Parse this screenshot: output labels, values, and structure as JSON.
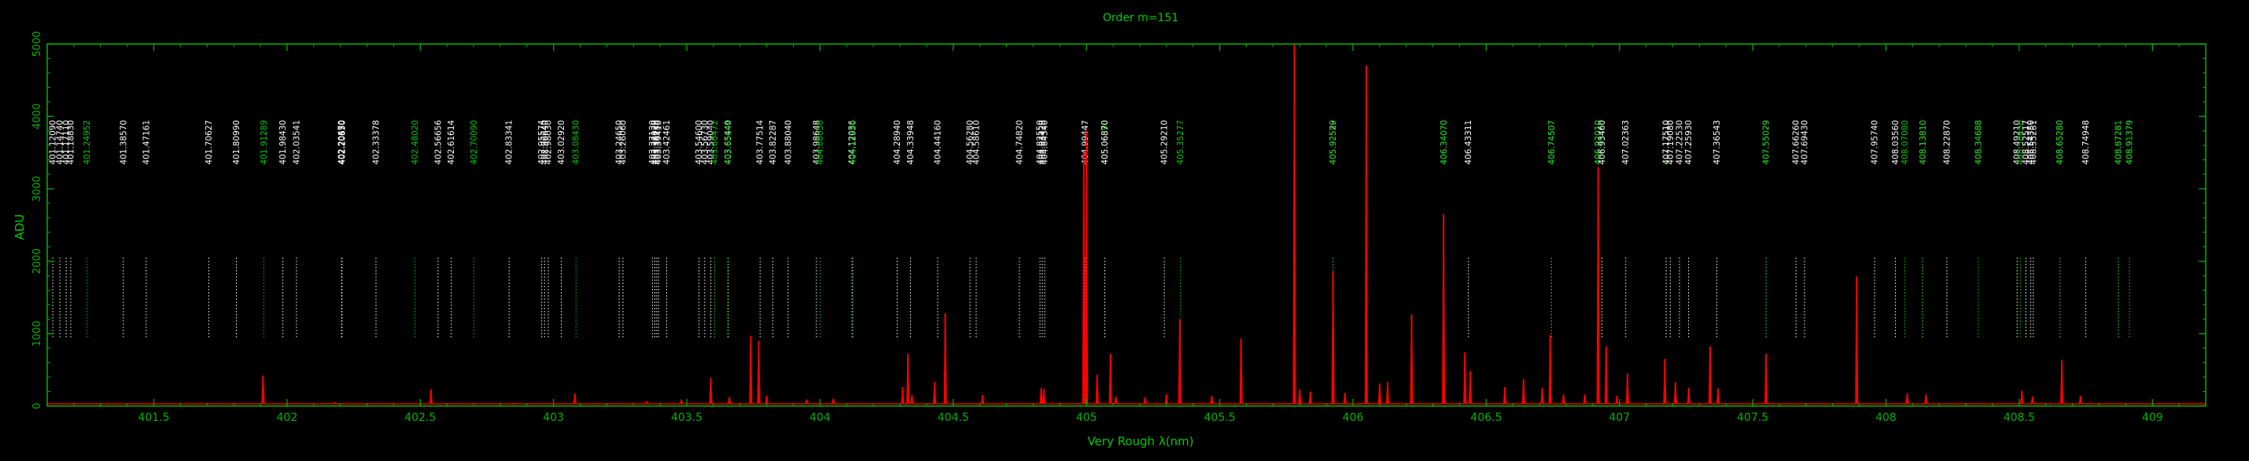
{
  "chart_data": {
    "type": "line",
    "title": "Order m=151",
    "xlabel": "Very Rough λ(nm)",
    "ylabel": "ADU",
    "xlim": [
      401.1,
      409.2
    ],
    "ylim": [
      0,
      5000
    ],
    "x_ticks": [
      401.5,
      402,
      402.5,
      403,
      403.5,
      404,
      404.5,
      405,
      405.5,
      406,
      406.5,
      407,
      407.5,
      408,
      408.5,
      409
    ],
    "x_tick_labels": [
      "401.5",
      "402",
      "402.5",
      "403",
      "403.5",
      "404",
      "404.5",
      "405",
      "405.5",
      "406",
      "406.5",
      "407",
      "407.5",
      "408",
      "408.5",
      "409"
    ],
    "y_ticks": [
      0,
      1000,
      2000,
      3000,
      4000,
      5000
    ],
    "y_tick_labels": [
      "0",
      "1000",
      "2000",
      "3000",
      "4000",
      "5000"
    ],
    "grid": false,
    "colors": {
      "frame": "#00b400",
      "spectrum": "#ff0000",
      "line_marker": "#ffffff",
      "line_marker_green": "#00cc00",
      "label_white": "#ffffff",
      "label_green": "#00cc00",
      "background": "#000000"
    },
    "line_markers": [
      {
        "wavelength": 401.1209,
        "label": "401.12090",
        "color": "white"
      },
      {
        "wavelength": 401.1474,
        "label": "401.14740",
        "color": "white"
      },
      {
        "wavelength": 401.1711,
        "label": "401.17110",
        "color": "white"
      },
      {
        "wavelength": 401.1883,
        "label": "401.18830",
        "color": "white"
      },
      {
        "wavelength": 401.2495,
        "label": "401.24952",
        "color": "green"
      },
      {
        "wavelength": 401.3857,
        "label": "401.38570",
        "color": "white"
      },
      {
        "wavelength": 401.4716,
        "label": "401.47161",
        "color": "white"
      },
      {
        "wavelength": 401.7063,
        "label": "401.70627",
        "color": "white"
      },
      {
        "wavelength": 401.8099,
        "label": "401.80990",
        "color": "white"
      },
      {
        "wavelength": 401.9129,
        "label": "401.91289",
        "color": "green"
      },
      {
        "wavelength": 401.9843,
        "label": "401.98430",
        "color": "white"
      },
      {
        "wavelength": 402.0354,
        "label": "402.03541",
        "color": "white"
      },
      {
        "wavelength": 402.2047,
        "label": "402.20470",
        "color": "white"
      },
      {
        "wavelength": 402.2055,
        "label": "402.20550",
        "color": "white"
      },
      {
        "wavelength": 402.2063,
        "label": "402.20630",
        "color": "white"
      },
      {
        "wavelength": 402.3338,
        "label": "402.33378",
        "color": "white"
      },
      {
        "wavelength": 402.4802,
        "label": "402.48020",
        "color": "green"
      },
      {
        "wavelength": 402.5666,
        "label": "402.56656",
        "color": "white"
      },
      {
        "wavelength": 402.6161,
        "label": "402.61614",
        "color": "white"
      },
      {
        "wavelength": 402.7009,
        "label": "402.70090",
        "color": "green"
      },
      {
        "wavelength": 402.8334,
        "label": "402.83341",
        "color": "white"
      },
      {
        "wavelength": 402.9557,
        "label": "402.95574",
        "color": "white"
      },
      {
        "wavelength": 402.9664,
        "label": "402.96640",
        "color": "white"
      },
      {
        "wavelength": 402.9803,
        "label": "402.98030",
        "color": "white"
      },
      {
        "wavelength": 403.0292,
        "label": "403.02920",
        "color": "white"
      },
      {
        "wavelength": 403.0843,
        "label": "403.08430",
        "color": "green"
      },
      {
        "wavelength": 403.2465,
        "label": "403.24650",
        "color": "white"
      },
      {
        "wavelength": 403.2606,
        "label": "403.26060",
        "color": "white"
      },
      {
        "wavelength": 403.3713,
        "label": "403.37130",
        "color": "white"
      },
      {
        "wavelength": 403.3802,
        "label": "403.38020",
        "color": "white"
      },
      {
        "wavelength": 403.3873,
        "label": "403.38730",
        "color": "white"
      },
      {
        "wavelength": 403.3941,
        "label": "403.39410",
        "color": "white"
      },
      {
        "wavelength": 403.4246,
        "label": "403.42461",
        "color": "white"
      },
      {
        "wavelength": 403.546,
        "label": "403.54600",
        "color": "white"
      },
      {
        "wavelength": 403.5673,
        "label": "403.56730",
        "color": "white"
      },
      {
        "wavelength": 403.5904,
        "label": "403.59040",
        "color": "white"
      },
      {
        "wavelength": 403.6047,
        "label": "403.60472",
        "color": "green"
      },
      {
        "wavelength": 403.6544,
        "label": "403.65440",
        "color": "white"
      },
      {
        "wavelength": 403.6564,
        "label": "403.65644",
        "color": "green"
      },
      {
        "wavelength": 403.7751,
        "label": "403.77514",
        "color": "white"
      },
      {
        "wavelength": 403.8229,
        "label": "403.82287",
        "color": "white"
      },
      {
        "wavelength": 403.8804,
        "label": "403.88040",
        "color": "white"
      },
      {
        "wavelength": 403.9865,
        "label": "403.98648",
        "color": "white"
      },
      {
        "wavelength": 404.0005,
        "label": "404.00050",
        "color": "green"
      },
      {
        "wavelength": 404.1204,
        "label": "404.12036",
        "color": "white"
      },
      {
        "wavelength": 404.1235,
        "label": "404.12350",
        "color": "green"
      },
      {
        "wavelength": 404.2894,
        "label": "404.28940",
        "color": "white"
      },
      {
        "wavelength": 404.3395,
        "label": "404.33948",
        "color": "white"
      },
      {
        "wavelength": 404.4416,
        "label": "404.44160",
        "color": "white"
      },
      {
        "wavelength": 404.5628,
        "label": "404.56280",
        "color": "white"
      },
      {
        "wavelength": 404.5861,
        "label": "404.58610",
        "color": "white"
      },
      {
        "wavelength": 404.7482,
        "label": "404.74820",
        "color": "white"
      },
      {
        "wavelength": 404.8255,
        "label": "404.82550",
        "color": "white"
      },
      {
        "wavelength": 404.8342,
        "label": "404.83420",
        "color": "white"
      },
      {
        "wavelength": 404.8434,
        "label": "404.84340",
        "color": "white"
      },
      {
        "wavelength": 404.9945,
        "label": "404.99447",
        "color": "white"
      },
      {
        "wavelength": 405.0689,
        "label": "405.06890",
        "color": "green"
      },
      {
        "wavelength": 405.0687,
        "label": "405.06870",
        "color": "white"
      },
      {
        "wavelength": 405.2921,
        "label": "405.29210",
        "color": "white"
      },
      {
        "wavelength": 405.3528,
        "label": "405.35277",
        "color": "green"
      },
      {
        "wavelength": 405.9253,
        "label": "405.92529",
        "color": "white"
      },
      {
        "wavelength": 405.9255,
        "label": "405.92550",
        "color": "green"
      },
      {
        "wavelength": 406.3407,
        "label": "406.34070",
        "color": "white"
      },
      {
        "wavelength": 406.3407,
        "label": "406.34070",
        "color": "green"
      },
      {
        "wavelength": 406.4331,
        "label": "406.43311",
        "color": "white"
      },
      {
        "wavelength": 406.7451,
        "label": "406.74507",
        "color": "white"
      },
      {
        "wavelength": 406.7451,
        "label": "406.74507",
        "color": "green"
      },
      {
        "wavelength": 406.9201,
        "label": "406.92010",
        "color": "white"
      },
      {
        "wavelength": 406.9201,
        "label": "406.92010",
        "color": "green"
      },
      {
        "wavelength": 406.9346,
        "label": "406.93460",
        "color": "white"
      },
      {
        "wavelength": 407.0236,
        "label": "407.02363",
        "color": "white"
      },
      {
        "wavelength": 407.1751,
        "label": "407.17510",
        "color": "green"
      },
      {
        "wavelength": 407.1751,
        "label": "407.17510",
        "color": "white"
      },
      {
        "wavelength": 407.1908,
        "label": "407.19080",
        "color": "white"
      },
      {
        "wavelength": 407.2253,
        "label": "407.22530",
        "color": "white"
      },
      {
        "wavelength": 407.2593,
        "label": "407.25930",
        "color": "white"
      },
      {
        "wavelength": 407.3654,
        "label": "407.36543",
        "color": "white"
      },
      {
        "wavelength": 407.5503,
        "label": "407.55029",
        "color": "white"
      },
      {
        "wavelength": 407.5503,
        "label": "407.55029",
        "color": "green"
      },
      {
        "wavelength": 407.6626,
        "label": "407.66260",
        "color": "white"
      },
      {
        "wavelength": 407.6943,
        "label": "407.69430",
        "color": "white"
      },
      {
        "wavelength": 407.9574,
        "label": "407.95740",
        "color": "white"
      },
      {
        "wavelength": 408.0357,
        "label": "408.03560",
        "color": "white"
      },
      {
        "wavelength": 408.0708,
        "label": "408.07080",
        "color": "green"
      },
      {
        "wavelength": 408.1381,
        "label": "408.13810",
        "color": "white"
      },
      {
        "wavelength": 408.1381,
        "label": "408.13810",
        "color": "green"
      },
      {
        "wavelength": 408.2287,
        "label": "408.22870",
        "color": "white"
      },
      {
        "wavelength": 408.3469,
        "label": "408.34688",
        "color": "white"
      },
      {
        "wavelength": 408.3469,
        "label": "408.34688",
        "color": "green"
      },
      {
        "wavelength": 408.4921,
        "label": "408.49210",
        "color": "white"
      },
      {
        "wavelength": 408.5045,
        "label": "408.50450",
        "color": "green"
      },
      {
        "wavelength": 408.5252,
        "label": "408.52517",
        "color": "white"
      },
      {
        "wavelength": 408.5435,
        "label": "408.54350",
        "color": "white"
      },
      {
        "wavelength": 408.5528,
        "label": "408.55281",
        "color": "white"
      },
      {
        "wavelength": 408.6528,
        "label": "408.65280",
        "color": "white"
      },
      {
        "wavelength": 408.6528,
        "label": "408.65280",
        "color": "green"
      },
      {
        "wavelength": 408.7495,
        "label": "408.74948",
        "color": "white"
      },
      {
        "wavelength": 408.8728,
        "label": "408.87281",
        "color": "white"
      },
      {
        "wavelength": 408.8728,
        "label": "408.87281",
        "color": "green"
      },
      {
        "wavelength": 408.9138,
        "label": "408.91379",
        "color": "white"
      },
      {
        "wavelength": 408.9138,
        "label": "408.91379",
        "color": "green"
      }
    ],
    "series": [
      {
        "baseline": 30,
        "x": [
          401.7,
          401.91,
          402.18,
          402.54,
          402.85,
          403.08,
          403.35,
          403.48,
          403.59,
          403.66,
          403.74,
          403.77,
          403.8,
          403.95,
          404.05,
          404.31,
          404.33,
          404.345,
          404.43,
          404.47,
          404.61,
          404.83,
          404.84,
          404.99,
          405.0,
          405.04,
          405.09,
          405.11,
          405.22,
          405.3,
          405.35,
          405.47,
          405.58,
          405.78,
          405.8,
          405.84,
          405.925,
          405.97,
          406.05,
          406.1,
          406.13,
          406.22,
          406.34,
          406.42,
          406.44,
          406.57,
          406.64,
          406.71,
          406.74,
          406.79,
          406.87,
          406.92,
          406.95,
          406.99,
          407.03,
          407.17,
          407.21,
          407.26,
          407.34,
          407.37,
          407.55,
          407.89,
          408.08,
          408.15,
          408.51,
          408.55,
          408.66,
          408.73
        ],
        "y": [
          40,
          420,
          50,
          230,
          40,
          170,
          60,
          80,
          390,
          120,
          970,
          900,
          140,
          90,
          100,
          260,
          720,
          150,
          330,
          1280,
          150,
          250,
          230,
          3500,
          3800,
          430,
          720,
          130,
          120,
          160,
          1200,
          140,
          930,
          5000,
          230,
          200,
          1850,
          180,
          4700,
          310,
          330,
          1260,
          2650,
          740,
          480,
          260,
          370,
          250,
          980,
          160,
          160,
          3300,
          820,
          140,
          450,
          650,
          330,
          250,
          820,
          240,
          720,
          1790,
          170,
          160,
          210,
          130,
          630,
          140
        ],
        "color": "#ff0000"
      }
    ]
  }
}
